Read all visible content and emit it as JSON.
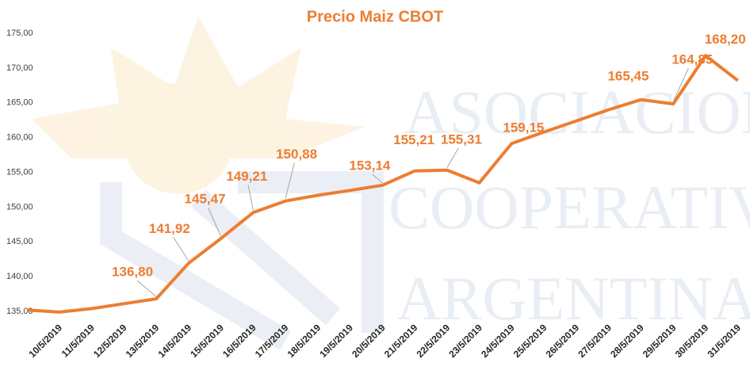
{
  "chart_data": {
    "type": "line",
    "title": "Precio Maiz CBOT",
    "watermark": [
      "ASOCIACION de",
      "COOPERATIVAS",
      "ARGENTINAS"
    ],
    "categories": [
      null,
      "10/5/2019",
      "11/5/2019",
      "12/5/2019",
      "13/5/2019",
      "14/5/2019",
      "15/5/2019",
      "16/5/2019",
      "17/5/2019",
      "18/5/2019",
      "19/5/2019",
      "20/5/2019",
      "21/5/2019",
      "22/5/2019",
      "23/5/2019",
      "24/5/2019",
      "25/5/2019",
      "26/5/2019",
      "27/5/2019",
      "28/5/2019",
      "29/5/2019",
      "30/5/2019",
      "31/5/2019"
    ],
    "series": [
      {
        "name": "Precio",
        "color": "#ed7d31",
        "values": [
          135.2,
          134.9,
          135.4,
          136.1,
          136.8,
          141.92,
          145.47,
          149.21,
          150.88,
          151.7,
          152.4,
          153.14,
          155.21,
          155.31,
          153.5,
          159.15,
          160.8,
          162.4,
          164.0,
          165.45,
          164.85,
          171.8,
          168.2
        ],
        "value_labels": [
          null,
          null,
          null,
          null,
          "136,80",
          "141,92",
          "145,47",
          "149,21",
          "150,88",
          null,
          null,
          "153,14",
          "155,21",
          "155,31",
          null,
          "159,15",
          null,
          null,
          null,
          "165,45",
          "164,85",
          null,
          "168,20"
        ]
      }
    ],
    "ylim": [
      135,
      175
    ],
    "yticks": [
      {
        "value": 135,
        "label": "135,00"
      },
      {
        "value": 140,
        "label": "140,00"
      },
      {
        "value": 145,
        "label": "145,00"
      },
      {
        "value": 150,
        "label": "150,00"
      },
      {
        "value": 155,
        "label": "155,00"
      },
      {
        "value": 160,
        "label": "160,00"
      },
      {
        "value": 165,
        "label": "165,00"
      },
      {
        "value": 170,
        "label": "170,00"
      },
      {
        "value": 175,
        "label": "175,00"
      }
    ],
    "grid": false
  }
}
